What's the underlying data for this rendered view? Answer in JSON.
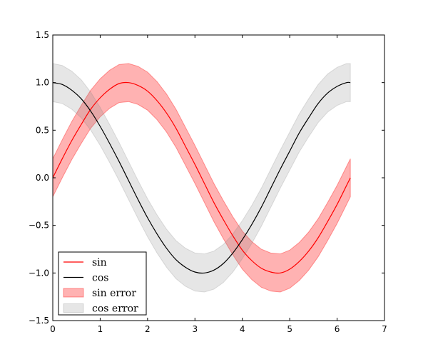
{
  "chart_data": {
    "type": "line",
    "title": "",
    "xlabel": "",
    "ylabel": "",
    "xlim": [
      0,
      7
    ],
    "ylim": [
      -1.5,
      1.5
    ],
    "x_ticks": [
      0,
      1,
      2,
      3,
      4,
      5,
      6,
      7
    ],
    "x_tick_labels": [
      "0",
      "1",
      "2",
      "3",
      "4",
      "5",
      "6",
      "7"
    ],
    "y_ticks": [
      -1.5,
      -1.0,
      -0.5,
      0.0,
      0.5,
      1.0,
      1.5
    ],
    "y_tick_labels": [
      "−1.5",
      "−1.0",
      "−0.5",
      "0.0",
      "0.5",
      "1.0",
      "1.5"
    ],
    "grid": false,
    "legend_position": "lower-left",
    "x": [
      0,
      0.2,
      0.4,
      0.6,
      0.8,
      1.0,
      1.2,
      1.4,
      1.6,
      1.8,
      2.0,
      2.2,
      2.4,
      2.6,
      2.8,
      3.0,
      3.2,
      3.4,
      3.6,
      3.8,
      4.0,
      4.2,
      4.4,
      4.6,
      4.8,
      5.0,
      5.2,
      5.4,
      5.6,
      5.8,
      6.0,
      6.2,
      6.28
    ],
    "series": [
      {
        "name": "sin",
        "color": "#ff0000",
        "values": [
          0,
          0.2,
          0.39,
          0.56,
          0.72,
          0.84,
          0.93,
          0.99,
          1.0,
          0.97,
          0.91,
          0.81,
          0.68,
          0.52,
          0.33,
          0.14,
          -0.06,
          -0.26,
          -0.44,
          -0.61,
          -0.76,
          -0.87,
          -0.95,
          -0.99,
          -1.0,
          -0.96,
          -0.88,
          -0.77,
          -0.63,
          -0.46,
          -0.28,
          -0.08,
          0
        ]
      },
      {
        "name": "cos",
        "color": "#000000",
        "values": [
          1.0,
          0.98,
          0.92,
          0.83,
          0.7,
          0.54,
          0.36,
          0.17,
          -0.03,
          -0.23,
          -0.42,
          -0.59,
          -0.74,
          -0.86,
          -0.94,
          -0.99,
          -1.0,
          -0.97,
          -0.9,
          -0.79,
          -0.65,
          -0.49,
          -0.31,
          -0.11,
          0.09,
          0.28,
          0.47,
          0.63,
          0.78,
          0.89,
          0.96,
          1.0,
          1.0
        ]
      }
    ],
    "bands": [
      {
        "name": "sin error",
        "base": "sin",
        "halfwidth": 0.2,
        "fill": "#ff0000",
        "opacity": 0.3
      },
      {
        "name": "cos error",
        "base": "cos",
        "halfwidth": 0.2,
        "fill": "#808080",
        "opacity": 0.2
      }
    ],
    "legend": [
      {
        "label": "sin",
        "kind": "line",
        "color": "#ff0000"
      },
      {
        "label": "cos",
        "kind": "line",
        "color": "#000000"
      },
      {
        "label": "sin error",
        "kind": "patch",
        "color": "#ff0000",
        "opacity": 0.3
      },
      {
        "label": "cos error",
        "kind": "patch",
        "color": "#808080",
        "opacity": 0.2
      }
    ]
  }
}
